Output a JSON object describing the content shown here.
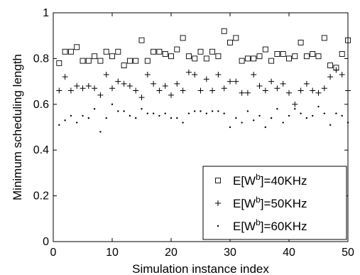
{
  "chart_data": {
    "type": "scatter",
    "title": "",
    "xlabel": "Simulation instance index",
    "ylabel": "Minimum scheduling length",
    "xlim": [
      0,
      50
    ],
    "ylim": [
      0,
      1
    ],
    "xticks": [
      0,
      10,
      20,
      30,
      40,
      50
    ],
    "xtick_labels": [
      "0",
      "10",
      "20",
      "30",
      "40",
      "50"
    ],
    "yticks": [
      0,
      0.2,
      0.4,
      0.6,
      0.8,
      1.0
    ],
    "ytick_labels": [
      "0",
      "0.2",
      "0.4",
      "0.6",
      "0.8",
      "1"
    ],
    "grid": false,
    "legend_position": "bottom-right",
    "x": [
      1,
      2,
      3,
      4,
      5,
      6,
      7,
      8,
      9,
      10,
      11,
      12,
      13,
      14,
      15,
      16,
      17,
      18,
      19,
      20,
      21,
      22,
      23,
      24,
      25,
      26,
      27,
      28,
      29,
      30,
      31,
      32,
      33,
      34,
      35,
      36,
      37,
      38,
      39,
      40,
      41,
      42,
      43,
      44,
      45,
      46,
      47,
      48,
      49,
      50
    ],
    "series": [
      {
        "name": "E[W^b]=40KHz",
        "legend_prefix": "E[W",
        "legend_sup": "b",
        "legend_suffix": "]=40KHz",
        "marker": "square",
        "values": [
          0.78,
          0.83,
          0.83,
          0.85,
          0.79,
          0.79,
          0.81,
          0.79,
          0.83,
          0.81,
          0.83,
          0.77,
          0.79,
          0.79,
          0.88,
          0.79,
          0.83,
          0.83,
          0.82,
          0.81,
          0.84,
          0.89,
          0.81,
          0.8,
          0.83,
          0.8,
          0.83,
          0.81,
          0.92,
          0.87,
          0.89,
          0.79,
          0.8,
          0.8,
          0.81,
          0.84,
          0.79,
          0.82,
          0.82,
          0.8,
          0.81,
          0.87,
          0.81,
          0.82,
          0.81,
          0.89,
          0.77,
          0.76,
          0.82,
          0.88
        ]
      },
      {
        "name": "E[W^b]=50KHz",
        "legend_prefix": "E[W",
        "legend_sup": "b",
        "legend_suffix": "]=50KHz",
        "marker": "plus",
        "values": [
          0.66,
          0.72,
          0.66,
          0.68,
          0.67,
          0.68,
          0.67,
          0.64,
          0.73,
          0.67,
          0.7,
          0.69,
          0.68,
          0.66,
          0.63,
          0.73,
          0.69,
          0.66,
          0.68,
          0.64,
          0.69,
          0.66,
          0.74,
          0.73,
          0.66,
          0.71,
          0.66,
          0.73,
          0.67,
          0.7,
          0.7,
          0.65,
          0.65,
          0.73,
          0.68,
          0.66,
          0.7,
          0.67,
          0.69,
          0.65,
          0.6,
          0.66,
          0.69,
          0.66,
          0.65,
          0.67,
          0.72,
          0.75,
          0.73,
          0.66
        ]
      },
      {
        "name": "E[W^b]=60KHz",
        "legend_prefix": "E[W",
        "legend_sup": "b",
        "legend_suffix": "]=60KHz",
        "marker": "dot",
        "values": [
          0.51,
          0.53,
          0.55,
          0.52,
          0.55,
          0.54,
          0.58,
          0.48,
          0.54,
          0.6,
          0.57,
          0.57,
          0.55,
          0.54,
          0.58,
          0.56,
          0.56,
          0.55,
          0.56,
          0.54,
          0.54,
          0.52,
          0.56,
          0.57,
          0.57,
          0.56,
          0.57,
          0.57,
          0.56,
          0.5,
          0.54,
          0.52,
          0.57,
          0.53,
          0.55,
          0.5,
          0.54,
          0.58,
          0.52,
          0.55,
          0.58,
          0.56,
          0.54,
          0.55,
          0.59,
          0.56,
          0.51,
          0.56,
          0.55,
          0.52
        ]
      }
    ]
  }
}
